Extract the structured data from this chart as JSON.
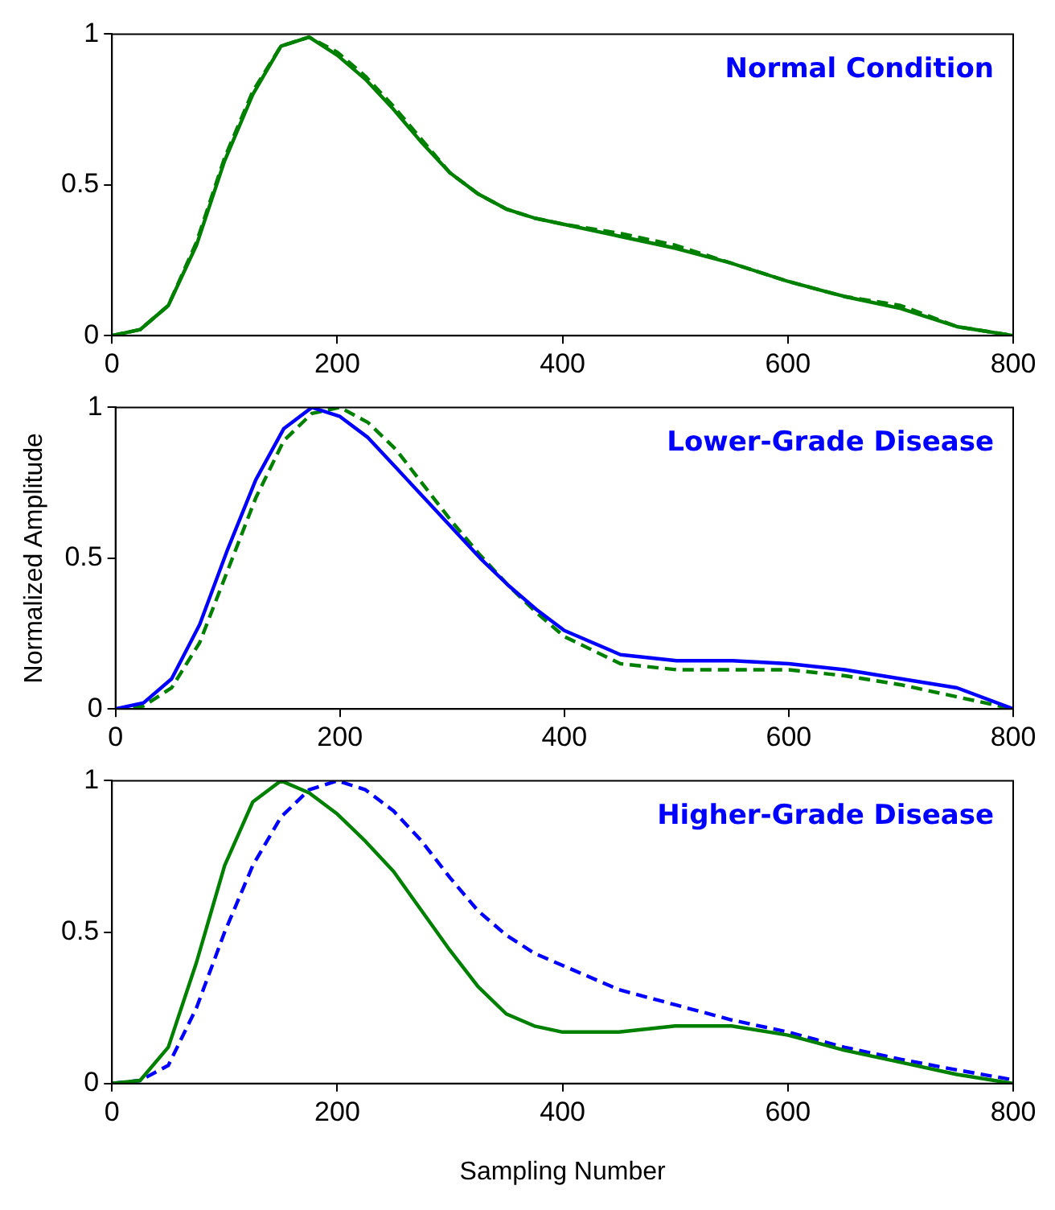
{
  "chart_data": [
    {
      "type": "line",
      "annotations": [
        "Normal Condition"
      ],
      "x": [
        0,
        25,
        50,
        75,
        100,
        125,
        150,
        175,
        200,
        225,
        250,
        275,
        300,
        325,
        350,
        375,
        400,
        450,
        500,
        550,
        600,
        650,
        700,
        750,
        800
      ],
      "xlim": [
        0,
        800
      ],
      "xticks": [
        0,
        200,
        400,
        600,
        800
      ],
      "ylim": [
        0,
        1
      ],
      "yticks": [
        0,
        0.5,
        1
      ],
      "grid": false,
      "legend": false,
      "marker": "none",
      "series": [
        {
          "color": "#008000",
          "line_style": "solid",
          "values": [
            0,
            0.02,
            0.1,
            0.3,
            0.58,
            0.8,
            0.96,
            0.99,
            0.93,
            0.85,
            0.75,
            0.64,
            0.54,
            0.47,
            0.42,
            0.39,
            0.37,
            0.33,
            0.29,
            0.24,
            0.18,
            0.13,
            0.09,
            0.03,
            0
          ]
        },
        {
          "color": "#008000",
          "line_style": "dashed",
          "values": [
            0,
            0.02,
            0.1,
            0.31,
            0.59,
            0.81,
            0.96,
            0.99,
            0.94,
            0.86,
            0.76,
            0.65,
            0.54,
            0.47,
            0.42,
            0.39,
            0.37,
            0.34,
            0.3,
            0.24,
            0.18,
            0.13,
            0.1,
            0.03,
            0
          ]
        }
      ]
    },
    {
      "type": "line",
      "annotations": [
        "Lower-Grade Disease"
      ],
      "ylabel": "Normalized Amplitude",
      "x": [
        0,
        25,
        50,
        75,
        100,
        125,
        150,
        175,
        200,
        225,
        250,
        275,
        300,
        325,
        350,
        375,
        400,
        450,
        500,
        550,
        600,
        650,
        700,
        750,
        800
      ],
      "xlim": [
        0,
        800
      ],
      "xticks": [
        0,
        200,
        400,
        600,
        800
      ],
      "ylim": [
        0,
        1
      ],
      "yticks": [
        0,
        0.5,
        1
      ],
      "grid": false,
      "legend": false,
      "marker": "none",
      "series": [
        {
          "color": "#0000ff",
          "line_style": "solid",
          "values": [
            0,
            0.02,
            0.1,
            0.28,
            0.53,
            0.76,
            0.93,
            1.0,
            0.97,
            0.9,
            0.8,
            0.7,
            0.6,
            0.5,
            0.41,
            0.33,
            0.26,
            0.18,
            0.16,
            0.16,
            0.15,
            0.13,
            0.1,
            0.07,
            0
          ]
        },
        {
          "color": "#008000",
          "line_style": "dashed",
          "values": [
            0,
            0.01,
            0.07,
            0.22,
            0.46,
            0.7,
            0.89,
            0.98,
            1.0,
            0.95,
            0.86,
            0.74,
            0.62,
            0.51,
            0.41,
            0.32,
            0.24,
            0.15,
            0.13,
            0.13,
            0.13,
            0.11,
            0.08,
            0.04,
            0
          ]
        }
      ]
    },
    {
      "type": "line",
      "annotations": [
        "Higher-Grade Disease"
      ],
      "xlabel": "Sampling Number",
      "x": [
        0,
        25,
        50,
        75,
        100,
        125,
        150,
        175,
        200,
        225,
        250,
        275,
        300,
        325,
        350,
        375,
        400,
        450,
        500,
        550,
        600,
        650,
        700,
        750,
        800
      ],
      "xlim": [
        0,
        800
      ],
      "xticks": [
        0,
        200,
        400,
        600,
        800
      ],
      "ylim": [
        0,
        1
      ],
      "yticks": [
        0,
        0.5,
        1
      ],
      "grid": false,
      "legend": false,
      "marker": "none",
      "series": [
        {
          "color": "#008000",
          "line_style": "solid",
          "values": [
            0,
            0.01,
            0.12,
            0.4,
            0.72,
            0.93,
            1.0,
            0.96,
            0.89,
            0.8,
            0.7,
            0.57,
            0.44,
            0.32,
            0.23,
            0.19,
            0.17,
            0.17,
            0.19,
            0.19,
            0.16,
            0.11,
            0.07,
            0.03,
            0
          ]
        },
        {
          "color": "#0000ff",
          "line_style": "dashed",
          "values": [
            0,
            0.01,
            0.06,
            0.25,
            0.5,
            0.72,
            0.88,
            0.97,
            1.0,
            0.97,
            0.9,
            0.8,
            0.68,
            0.57,
            0.49,
            0.43,
            0.39,
            0.31,
            0.26,
            0.21,
            0.17,
            0.12,
            0.08,
            0.045,
            0.012
          ]
        }
      ]
    }
  ]
}
